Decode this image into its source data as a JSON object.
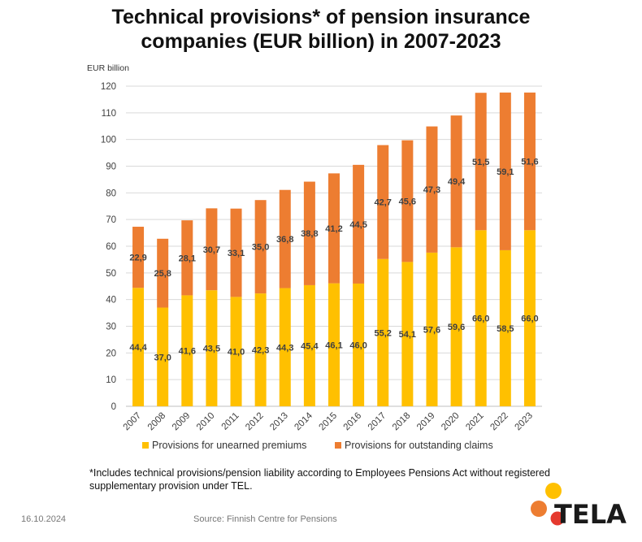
{
  "title_line1": "Technical provisions* of pension insurance",
  "title_line2": "companies  (EUR billion) in 2007-2023",
  "footnote_line1": "*Includes technical provisions/pension liability according to Employees Pensions Act without registered",
  "footnote_line2": "supplementary provision under TEL.",
  "date": "16.10.2024",
  "source": "Source: Finnish Centre for Pensions",
  "logo_text": "TELA",
  "chart_data": {
    "type": "bar",
    "stacked": true,
    "ylabel": "EUR billion",
    "ylim": [
      0,
      120
    ],
    "yticks": [
      0,
      10,
      20,
      30,
      40,
      50,
      60,
      70,
      80,
      90,
      100,
      110,
      120
    ],
    "grid": true,
    "legend_position": "bottom",
    "categories": [
      "2007",
      "2008",
      "2009",
      "2010",
      "2011",
      "2012",
      "2013",
      "2014",
      "2015",
      "2016",
      "2017",
      "2018",
      "2019",
      "2020",
      "2021",
      "2022",
      "2023"
    ],
    "series": [
      {
        "name": "Provisions for unearned premiums",
        "color": "#FFC000",
        "values": [
          44.4,
          37.0,
          41.6,
          43.5,
          41.0,
          42.3,
          44.3,
          45.4,
          46.1,
          46.0,
          55.2,
          54.1,
          57.6,
          59.6,
          66.0,
          58.5,
          66.0
        ],
        "labels": [
          "44,4",
          "37,0",
          "41,6",
          "43,5",
          "41,0",
          "42,3",
          "44,3",
          "45,4",
          "46,1",
          "46,0",
          "55,2",
          "54,1",
          "57,6",
          "59,6",
          "66,0",
          "58,5",
          "66,0"
        ]
      },
      {
        "name": "Provisions for outstanding claims",
        "color": "#ED7D31",
        "values": [
          22.9,
          25.8,
          28.1,
          30.7,
          33.1,
          35.0,
          36.8,
          38.8,
          41.2,
          44.5,
          42.7,
          45.6,
          47.3,
          49.4,
          51.5,
          59.1,
          51.6
        ],
        "labels": [
          "22,9",
          "25,8",
          "28,1",
          "30,7",
          "33,1",
          "35,0",
          "36,8",
          "38,8",
          "41,2",
          "44,5",
          "42,7",
          "45,6",
          "47,3",
          "49,4",
          "51,5",
          "59,1",
          "51,6"
        ]
      }
    ]
  }
}
